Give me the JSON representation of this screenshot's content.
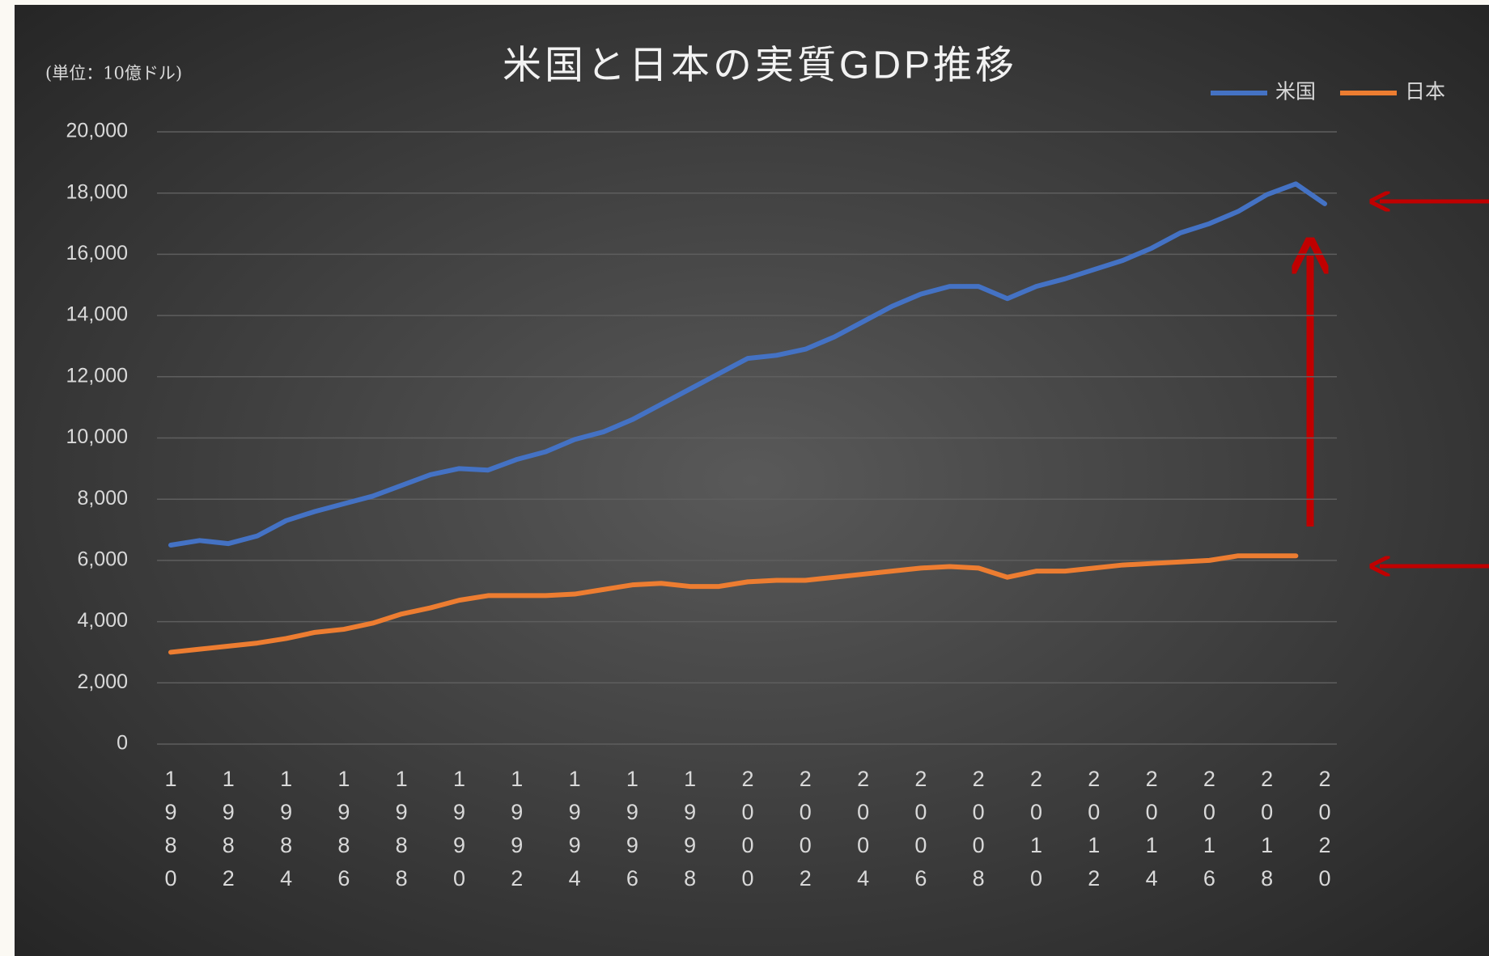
{
  "chart_data": {
    "type": "line",
    "title": "米国と日本の実質GDP推移",
    "unit_label": "(単位：10億ドル)",
    "categories": [
      "1980",
      null,
      "1982",
      null,
      "1984",
      null,
      "1986",
      null,
      "1988",
      null,
      "1990",
      null,
      "1992",
      null,
      "1994",
      null,
      "1996",
      null,
      "1998",
      null,
      "2000",
      null,
      "2002",
      null,
      "2004",
      null,
      "2006",
      null,
      "2008",
      null,
      "2010",
      null,
      "2012",
      null,
      "2014",
      null,
      "2016",
      null,
      "2018",
      null,
      "2020"
    ],
    "series": [
      {
        "name": "米国",
        "color": "#4472c4",
        "values": [
          6500,
          6650,
          6550,
          6800,
          7300,
          7600,
          7850,
          8100,
          8450,
          8800,
          9000,
          8950,
          9300,
          9550,
          9950,
          10200,
          10600,
          11100,
          11600,
          12100,
          12600,
          12700,
          12900,
          13300,
          13800,
          14300,
          14700,
          14950,
          14950,
          14550,
          14950,
          15200,
          15500,
          15800,
          16200,
          16700,
          17000,
          17400,
          17950,
          18300,
          17650
        ]
      },
      {
        "name": "日本",
        "color": "#ed7d31",
        "values": [
          3000,
          3100,
          3200,
          3300,
          3450,
          3650,
          3750,
          3950,
          4250,
          4450,
          4700,
          4850,
          4850,
          4850,
          4900,
          5050,
          5200,
          5250,
          5150,
          5150,
          5300,
          5350,
          5350,
          5450,
          5550,
          5650,
          5750,
          5800,
          5750,
          5450,
          5650,
          5650,
          5750,
          5850,
          5900,
          5950,
          6000,
          6150,
          6150,
          6150,
          null
        ]
      }
    ],
    "ylim": [
      0,
      20000
    ],
    "yticks": [
      0,
      {
        "value": 2000,
        "label": "2,000"
      },
      {
        "value": 4000,
        "label": "4,000"
      },
      {
        "value": 6000,
        "label": "6,000"
      },
      {
        "value": 8000,
        "label": "8,000"
      },
      {
        "value": 10000,
        "label": "10,000"
      },
      {
        "value": 12000,
        "label": "12,000"
      },
      {
        "value": 14000,
        "label": "14,000"
      },
      {
        "value": 16000,
        "label": "16,000"
      },
      {
        "value": 18000,
        "label": "18,000"
      },
      {
        "value": 20000,
        "label": "20,000"
      }
    ],
    "grid": true,
    "legend": "top-right"
  }
}
